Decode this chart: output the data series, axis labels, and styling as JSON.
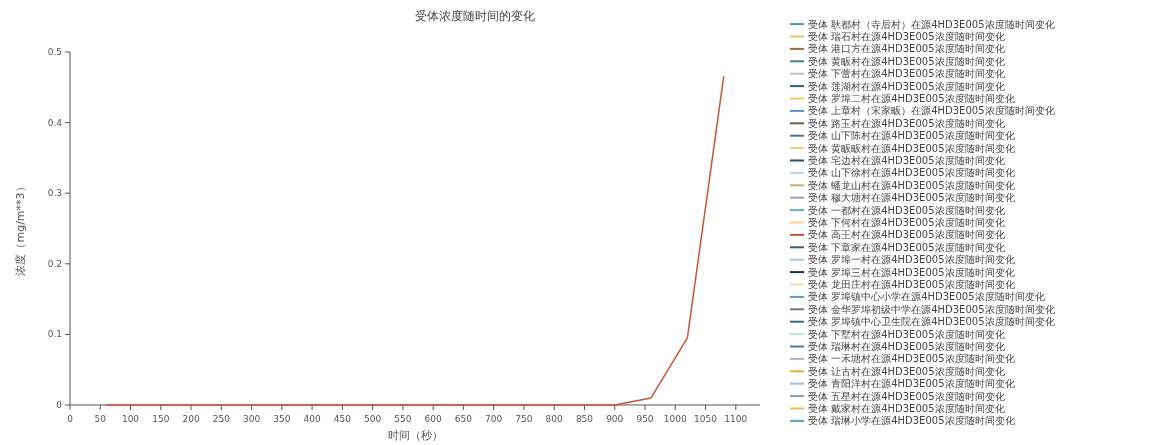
{
  "chart_data": {
    "type": "line",
    "title": "受体浓度随时间的变化",
    "xlabel": "时间（秒）",
    "ylabel": "浓度（mg/m**3）",
    "legend": "right",
    "grid": false,
    "marker": "none",
    "line_style": "solid",
    "xlim": [
      0,
      1140
    ],
    "xticks": [
      0,
      50,
      100,
      150,
      200,
      250,
      300,
      350,
      400,
      450,
      500,
      550,
      600,
      650,
      700,
      750,
      800,
      850,
      900,
      950,
      1000,
      1050,
      1100
    ],
    "ylim": [
      0,
      0.5
    ],
    "yticks": [
      0,
      0.1,
      0.2,
      0.3,
      0.4,
      0.5
    ],
    "x": [
      60,
      120,
      180,
      240,
      300,
      360,
      420,
      480,
      540,
      600,
      660,
      720,
      780,
      840,
      900,
      960,
      1020,
      1080
    ],
    "series": [
      {
        "name": "受体 耿都村（寺后村）在源4HD3E005浓度随时间变化",
        "color": "#4a9bb5",
        "values": [
          null,
          null,
          null,
          null,
          null,
          null,
          null,
          null,
          null,
          null,
          null,
          null,
          null,
          null,
          null,
          null,
          null,
          null
        ]
      },
      {
        "name": "受体 瑞石村在源4HD3E005浓度随时间变化",
        "color": "#e8c468",
        "values": [
          null,
          null,
          null,
          null,
          null,
          null,
          null,
          null,
          null,
          null,
          null,
          null,
          null,
          null,
          null,
          null,
          null,
          null
        ]
      },
      {
        "name": "受体 港口方在源4HD3E005浓度随时间变化",
        "color": "#9b6a4a",
        "values": [
          null,
          null,
          null,
          null,
          null,
          null,
          null,
          null,
          null,
          null,
          null,
          null,
          null,
          null,
          null,
          null,
          null,
          null
        ]
      },
      {
        "name": "受体 黄畈村在源4HD3E005浓度随时间变化",
        "color": "#3d7f8f",
        "values": [
          null,
          null,
          null,
          null,
          null,
          null,
          null,
          null,
          null,
          null,
          null,
          null,
          null,
          null,
          null,
          null,
          null,
          null
        ]
      },
      {
        "name": "受体 下蕾村在源4HD3E005浓度随时间变化",
        "color": "#c8b6d8",
        "values": [
          null,
          null,
          null,
          null,
          null,
          null,
          null,
          null,
          null,
          null,
          null,
          null,
          null,
          null,
          null,
          null,
          null,
          null
        ]
      },
      {
        "name": "受体 莲湖村在源4HD3E005浓度随时间变化",
        "color": "#2f5f6f",
        "values": [
          null,
          null,
          null,
          null,
          null,
          null,
          null,
          null,
          null,
          null,
          null,
          null,
          null,
          null,
          null,
          null,
          null,
          null
        ]
      },
      {
        "name": "受体 罗埠二村在源4HD3E005浓度随时间变化",
        "color": "#f0d060",
        "values": [
          null,
          null,
          null,
          null,
          null,
          null,
          null,
          null,
          null,
          null,
          null,
          null,
          null,
          null,
          null,
          null,
          null,
          null
        ]
      },
      {
        "name": "受体 上章村（宋家畈）在源4HD3E005浓度随时间变化",
        "color": "#5b8fd0",
        "values": [
          null,
          null,
          null,
          null,
          null,
          null,
          null,
          null,
          null,
          null,
          null,
          null,
          null,
          null,
          null,
          null,
          null,
          null
        ]
      },
      {
        "name": "受体 路玉村在源4HD3E005浓度随时间变化",
        "color": "#7a5a3c",
        "values": [
          null,
          null,
          null,
          null,
          null,
          null,
          null,
          null,
          null,
          null,
          null,
          null,
          null,
          null,
          null,
          null,
          null,
          null
        ]
      },
      {
        "name": "受体 山下陈村在源4HD3E005浓度随时间变化",
        "color": "#4a6fa5",
        "values": [
          null,
          null,
          null,
          null,
          null,
          null,
          null,
          null,
          null,
          null,
          null,
          null,
          null,
          null,
          null,
          null,
          null,
          null
        ]
      },
      {
        "name": "受体 黄畈畈村在源4HD3E005浓度随时间变化",
        "color": "#e8d080",
        "values": [
          null,
          null,
          null,
          null,
          null,
          null,
          null,
          null,
          null,
          null,
          null,
          null,
          null,
          null,
          null,
          null,
          null,
          null
        ]
      },
      {
        "name": "受体 宅边村在源4HD3E005浓度随时间变化",
        "color": "#2c4a6a",
        "values": [
          null,
          null,
          null,
          null,
          null,
          null,
          null,
          null,
          null,
          null,
          null,
          null,
          null,
          null,
          null,
          null,
          null,
          null
        ]
      },
      {
        "name": "受体 山下徐村在源4HD3E005浓度随时间变化",
        "color": "#b8d8e8",
        "values": [
          null,
          null,
          null,
          null,
          null,
          null,
          null,
          null,
          null,
          null,
          null,
          null,
          null,
          null,
          null,
          null,
          null,
          null
        ]
      },
      {
        "name": "受体 蟠龙山村在源4HD3E005浓度随时间变化",
        "color": "#c8b060",
        "values": [
          null,
          null,
          null,
          null,
          null,
          null,
          null,
          null,
          null,
          null,
          null,
          null,
          null,
          null,
          null,
          null,
          null,
          null
        ]
      },
      {
        "name": "受体 穆大塘村在源4HD3E005浓度随时间变化",
        "color": "#9a9ac8",
        "values": [
          null,
          null,
          null,
          null,
          null,
          null,
          null,
          null,
          null,
          null,
          null,
          null,
          null,
          null,
          null,
          null,
          null,
          null
        ]
      },
      {
        "name": "受体 一都村在源4HD3E005浓度随时间变化",
        "color": "#6aa8d8",
        "values": [
          null,
          null,
          null,
          null,
          null,
          null,
          null,
          null,
          null,
          null,
          null,
          null,
          null,
          null,
          null,
          null,
          null,
          null
        ]
      },
      {
        "name": "受体 下何村在源4HD3E005浓度随时间变化",
        "color": "#f0d890",
        "values": [
          null,
          null,
          null,
          null,
          null,
          null,
          null,
          null,
          null,
          null,
          null,
          null,
          null,
          null,
          null,
          null,
          null,
          null
        ]
      },
      {
        "name": "受体 高王村在源4HD3E005浓度随时间变化",
        "color": "#c8553a",
        "values": [
          0,
          0,
          0,
          0,
          0,
          0,
          0,
          0,
          0,
          0,
          0,
          0,
          0,
          0,
          0,
          0.01,
          0.095,
          0.465
        ]
      },
      {
        "name": "受体 下章家在源4HD3E005浓度随时间变化",
        "color": "#3a5a7a",
        "values": [
          null,
          null,
          null,
          null,
          null,
          null,
          null,
          null,
          null,
          null,
          null,
          null,
          null,
          null,
          null,
          null,
          null,
          null
        ]
      },
      {
        "name": "受体 罗埠一村在源4HD3E005浓度随时间变化",
        "color": "#a8c8e0",
        "values": [
          null,
          null,
          null,
          null,
          null,
          null,
          null,
          null,
          null,
          null,
          null,
          null,
          null,
          null,
          null,
          null,
          null,
          null
        ]
      },
      {
        "name": "受体 罗埠三村在源4HD3E005浓度随时间变化",
        "color": "#1f2f3f",
        "values": [
          null,
          null,
          null,
          null,
          null,
          null,
          null,
          null,
          null,
          null,
          null,
          null,
          null,
          null,
          null,
          null,
          null,
          null
        ]
      },
      {
        "name": "受体 龙田庄村在源4HD3E005浓度随时间变化",
        "color": "#f0e0a0",
        "values": [
          null,
          null,
          null,
          null,
          null,
          null,
          null,
          null,
          null,
          null,
          null,
          null,
          null,
          null,
          null,
          null,
          null,
          null
        ]
      },
      {
        "name": "受体 罗埠镇中心小学在源4HD3E005浓度随时间变化",
        "color": "#5a9ac0",
        "values": [
          null,
          null,
          null,
          null,
          null,
          null,
          null,
          null,
          null,
          null,
          null,
          null,
          null,
          null,
          null,
          null,
          null,
          null
        ]
      },
      {
        "name": "受体 金华罗埠初级中学在源4HD3E005浓度随时间变化",
        "color": "#6a7a8a",
        "values": [
          null,
          null,
          null,
          null,
          null,
          null,
          null,
          null,
          null,
          null,
          null,
          null,
          null,
          null,
          null,
          null,
          null,
          null
        ]
      },
      {
        "name": "受体 罗埠镇中心卫生院在源4HD3E005浓度随时间变化",
        "color": "#3a6a8a",
        "values": [
          null,
          null,
          null,
          null,
          null,
          null,
          null,
          null,
          null,
          null,
          null,
          null,
          null,
          null,
          null,
          null,
          null,
          null
        ]
      },
      {
        "name": "受体 下墅村在源4HD3E005浓度随时间变化",
        "color": "#c8e0d0",
        "values": [
          null,
          null,
          null,
          null,
          null,
          null,
          null,
          null,
          null,
          null,
          null,
          null,
          null,
          null,
          null,
          null,
          null,
          null
        ]
      },
      {
        "name": "受体 瑞琳村在源4HD3E005浓度随时间变化",
        "color": "#4a7aa0",
        "values": [
          null,
          null,
          null,
          null,
          null,
          null,
          null,
          null,
          null,
          null,
          null,
          null,
          null,
          null,
          null,
          null,
          null,
          null
        ]
      },
      {
        "name": "受体 一禾塘村在源4HD3E005浓度随时间变化",
        "color": "#b0b0d8",
        "values": [
          null,
          null,
          null,
          null,
          null,
          null,
          null,
          null,
          null,
          null,
          null,
          null,
          null,
          null,
          null,
          null,
          null,
          null
        ]
      },
      {
        "name": "受体 让古村在源4HD3E005浓度随时间变化",
        "color": "#e0b040",
        "values": [
          null,
          null,
          null,
          null,
          null,
          null,
          null,
          null,
          null,
          null,
          null,
          null,
          null,
          null,
          null,
          null,
          null,
          null
        ]
      },
      {
        "name": "受体 青阳洋村在源4HD3E005浓度随时间变化",
        "color": "#a0c0e0",
        "values": [
          null,
          null,
          null,
          null,
          null,
          null,
          null,
          null,
          null,
          null,
          null,
          null,
          null,
          null,
          null,
          null,
          null,
          null
        ]
      },
      {
        "name": "受体 五星村在源4HD3E005浓度随时间变化",
        "color": "#8aa0b0",
        "values": [
          null,
          null,
          null,
          null,
          null,
          null,
          null,
          null,
          null,
          null,
          null,
          null,
          null,
          null,
          null,
          null,
          null,
          null
        ]
      },
      {
        "name": "受体 戴家村在源4HD3E005浓度随时间变化",
        "color": "#e8c050",
        "values": [
          null,
          null,
          null,
          null,
          null,
          null,
          null,
          null,
          null,
          null,
          null,
          null,
          null,
          null,
          null,
          null,
          null,
          null
        ]
      },
      {
        "name": "受体 瑞琳小学在源4HD3E005浓度随时间变化",
        "color": "#5aa0b0",
        "values": [
          null,
          null,
          null,
          null,
          null,
          null,
          null,
          null,
          null,
          null,
          null,
          null,
          null,
          null,
          null,
          null,
          null,
          null
        ]
      }
    ]
  }
}
